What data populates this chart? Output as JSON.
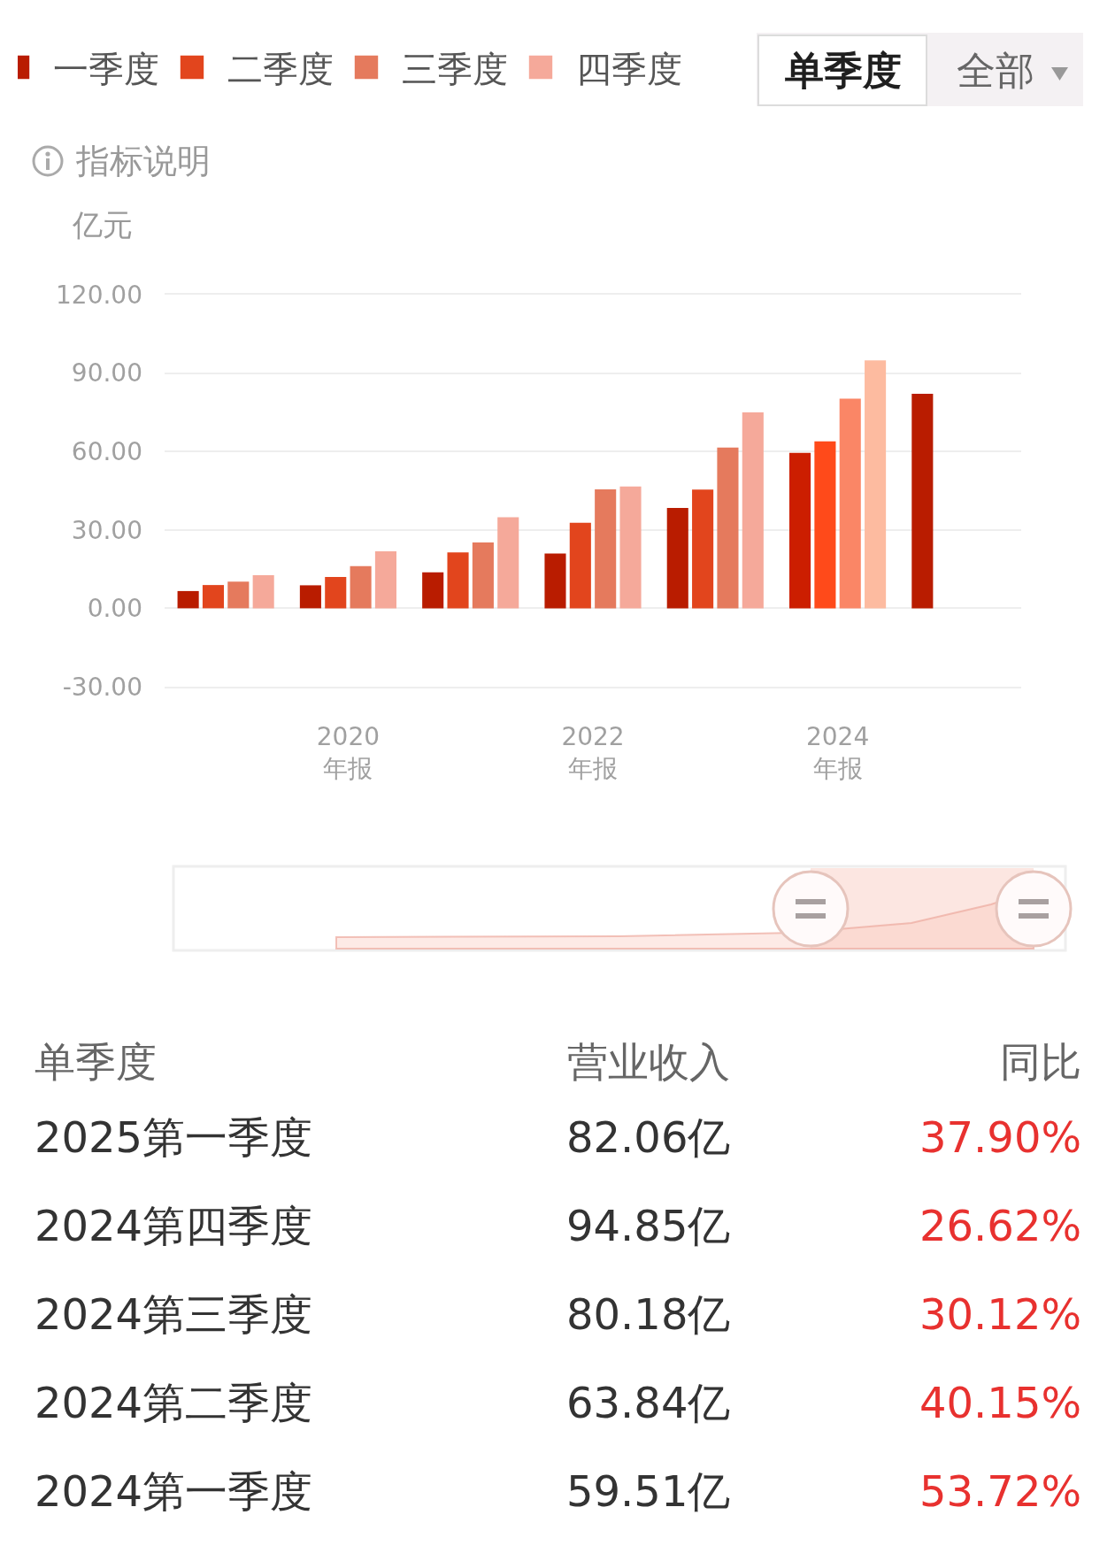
{
  "chart_data": {
    "type": "bar",
    "categories": [
      null,
      "2020\n年报",
      null,
      "2022\n年报",
      null,
      "2024\n年报",
      null
    ],
    "ylabel": "亿元",
    "series": [
      {
        "name": "一季度",
        "color": "#b91c00",
        "colors": [
          null,
          null,
          null,
          null,
          null,
          "#cc1e00",
          null
        ],
        "values": [
          6.6,
          8.8,
          13.8,
          21.0,
          38.4,
          59.51,
          82.06
        ]
      },
      {
        "name": "二季度",
        "color": "#e2451d",
        "colors": [
          null,
          null,
          null,
          null,
          null,
          "#ff4a1a",
          null
        ],
        "values": [
          8.9,
          12.0,
          21.4,
          32.7,
          45.4,
          63.84,
          null
        ]
      },
      {
        "name": "三季度",
        "color": "#e57a5d",
        "colors": [
          null,
          null,
          null,
          null,
          null,
          "#fa8666",
          null
        ],
        "values": [
          10.2,
          16.1,
          25.2,
          45.5,
          61.5,
          80.18,
          null
        ]
      },
      {
        "name": "四季度",
        "color": "#f5a99a",
        "colors": [
          null,
          null,
          null,
          null,
          null,
          "#fdbba0",
          null
        ],
        "values": [
          12.7,
          21.8,
          34.8,
          46.6,
          75.0,
          94.85,
          null
        ]
      }
    ],
    "ylim": [
      -30,
      120
    ],
    "yticks": [
      {
        "value": -30,
        "label": "-30.00"
      },
      {
        "value": 0,
        "label": "0.00"
      },
      {
        "value": 30,
        "label": "30.00"
      },
      {
        "value": 60,
        "label": "60.00"
      },
      {
        "value": 90,
        "label": "90.00"
      },
      {
        "value": 120,
        "label": "120.00"
      }
    ],
    "grid": "y",
    "legend": "top left",
    "annotations": [
      "单季度",
      "全部",
      "指标说明",
      "单季度",
      "营业收入",
      "同比",
      "2025第一季度",
      "82.06亿",
      "37.90%",
      "2024第四季度",
      "94.85亿",
      "26.62%",
      "2024第三季度",
      "80.18亿",
      "30.12%",
      "2024第二季度",
      "63.84亿",
      "40.15%",
      "2024第一季度",
      "59.51亿",
      "53.72%"
    ]
  }
}
